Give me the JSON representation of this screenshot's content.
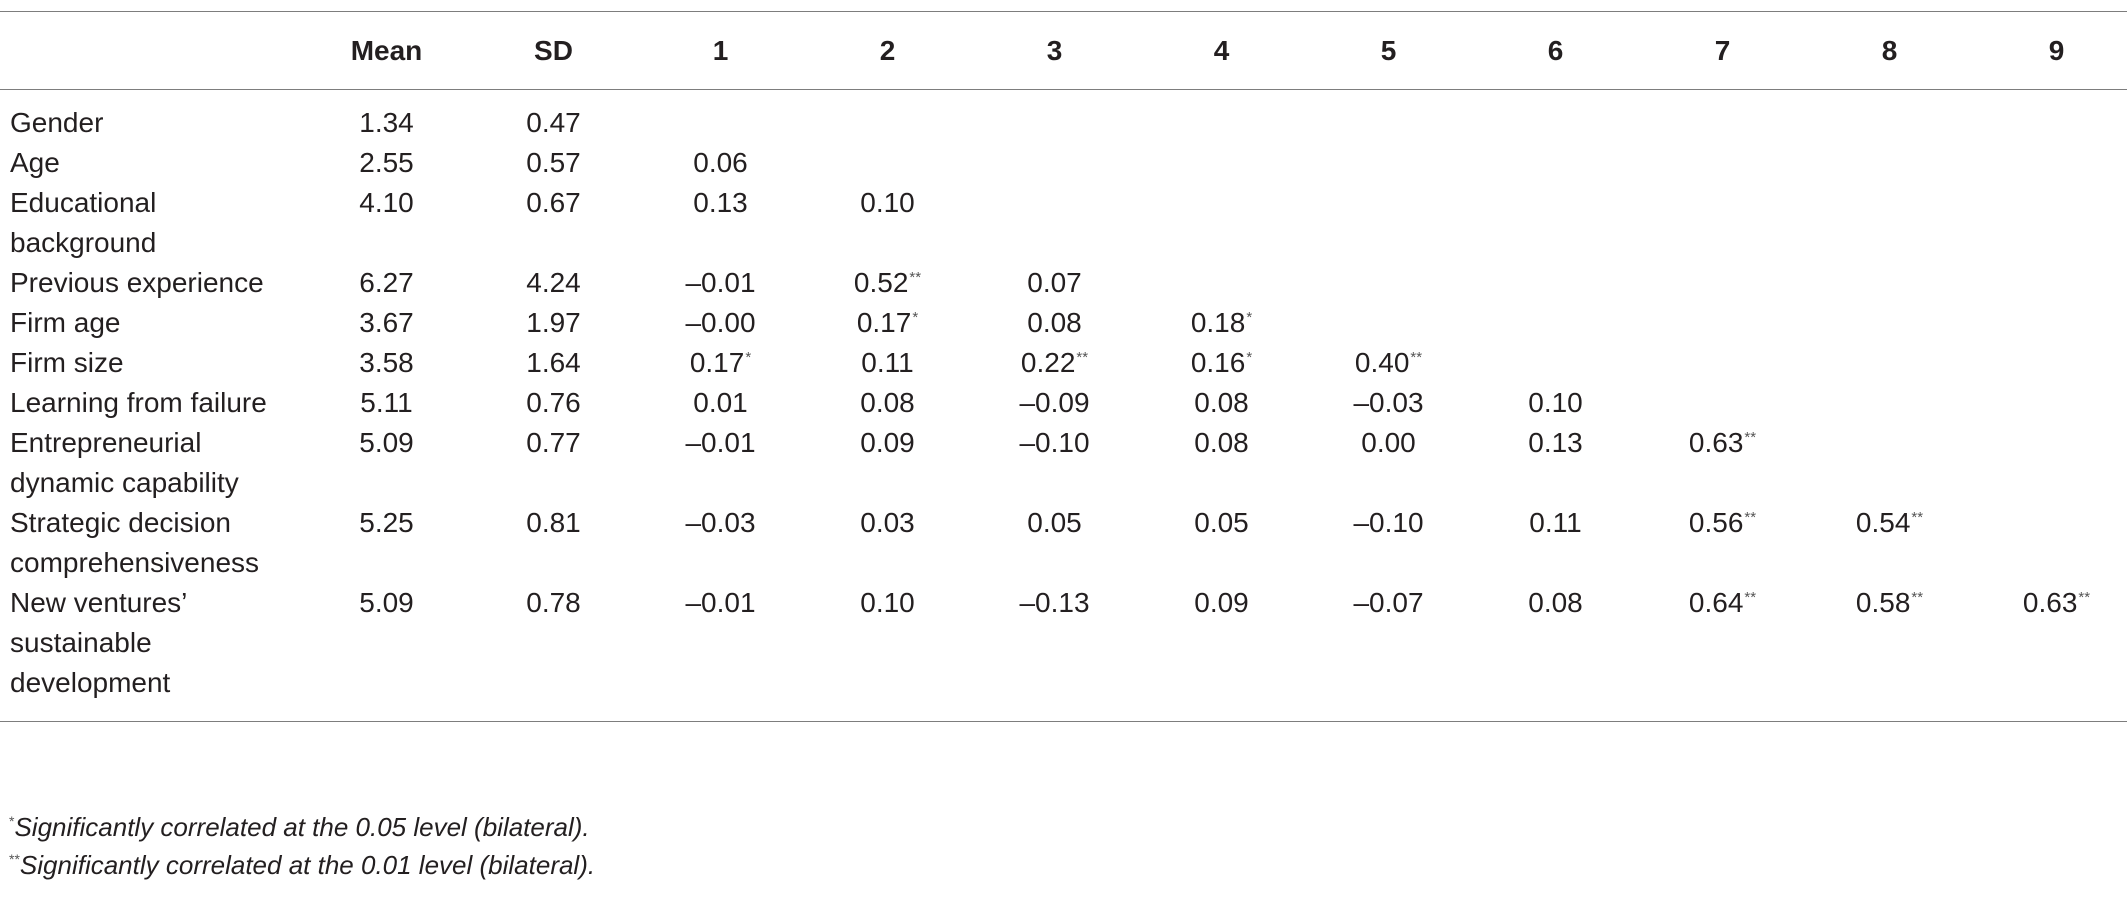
{
  "table": {
    "headers": [
      "",
      "Mean",
      "SD",
      "1",
      "2",
      "3",
      "4",
      "5",
      "6",
      "7",
      "8",
      "9"
    ],
    "rows": [
      {
        "label": "Gender",
        "cells": [
          [
            "1.34",
            ""
          ],
          [
            "0.47",
            ""
          ],
          [
            "",
            ""
          ],
          [
            "",
            ""
          ],
          [
            "",
            ""
          ],
          [
            "",
            ""
          ],
          [
            "",
            ""
          ],
          [
            "",
            ""
          ],
          [
            "",
            ""
          ],
          [
            "",
            ""
          ],
          [
            "",
            ""
          ]
        ]
      },
      {
        "label": "Age",
        "cells": [
          [
            "2.55",
            ""
          ],
          [
            "0.57",
            ""
          ],
          [
            "0.06",
            ""
          ],
          [
            "",
            ""
          ],
          [
            "",
            ""
          ],
          [
            "",
            ""
          ],
          [
            "",
            ""
          ],
          [
            "",
            ""
          ],
          [
            "",
            ""
          ],
          [
            "",
            ""
          ],
          [
            "",
            ""
          ]
        ]
      },
      {
        "label": "Educational background",
        "cells": [
          [
            "4.10",
            ""
          ],
          [
            "0.67",
            ""
          ],
          [
            "0.13",
            ""
          ],
          [
            "0.10",
            ""
          ],
          [
            "",
            ""
          ],
          [
            "",
            ""
          ],
          [
            "",
            ""
          ],
          [
            "",
            ""
          ],
          [
            "",
            ""
          ],
          [
            "",
            ""
          ],
          [
            "",
            ""
          ]
        ]
      },
      {
        "label": "Previous experience",
        "cells": [
          [
            "6.27",
            ""
          ],
          [
            "4.24",
            ""
          ],
          [
            "–0.01",
            ""
          ],
          [
            "0.52",
            "**"
          ],
          [
            "0.07",
            ""
          ],
          [
            "",
            ""
          ],
          [
            "",
            ""
          ],
          [
            "",
            ""
          ],
          [
            "",
            ""
          ],
          [
            "",
            ""
          ],
          [
            "",
            ""
          ]
        ]
      },
      {
        "label": "Firm age",
        "cells": [
          [
            "3.67",
            ""
          ],
          [
            "1.97",
            ""
          ],
          [
            "–0.00",
            ""
          ],
          [
            "0.17",
            "*"
          ],
          [
            "0.08",
            ""
          ],
          [
            "0.18",
            "*"
          ],
          [
            "",
            ""
          ],
          [
            "",
            ""
          ],
          [
            "",
            ""
          ],
          [
            "",
            ""
          ],
          [
            "",
            ""
          ]
        ]
      },
      {
        "label": "Firm size",
        "cells": [
          [
            "3.58",
            ""
          ],
          [
            "1.64",
            ""
          ],
          [
            "0.17",
            "*"
          ],
          [
            "0.11",
            ""
          ],
          [
            "0.22",
            "**"
          ],
          [
            "0.16",
            "*"
          ],
          [
            "0.40",
            "**"
          ],
          [
            "",
            ""
          ],
          [
            "",
            ""
          ],
          [
            "",
            ""
          ],
          [
            "",
            ""
          ]
        ]
      },
      {
        "label": "Learning from failure",
        "cells": [
          [
            "5.11",
            ""
          ],
          [
            "0.76",
            ""
          ],
          [
            "0.01",
            ""
          ],
          [
            "0.08",
            ""
          ],
          [
            "–0.09",
            ""
          ],
          [
            "0.08",
            ""
          ],
          [
            "–0.03",
            ""
          ],
          [
            "0.10",
            ""
          ],
          [
            "",
            ""
          ],
          [
            "",
            ""
          ],
          [
            "",
            ""
          ]
        ]
      },
      {
        "label": "Entrepreneurial dynamic capability",
        "cells": [
          [
            "5.09",
            ""
          ],
          [
            "0.77",
            ""
          ],
          [
            "–0.01",
            ""
          ],
          [
            "0.09",
            ""
          ],
          [
            "–0.10",
            ""
          ],
          [
            "0.08",
            ""
          ],
          [
            "0.00",
            ""
          ],
          [
            "0.13",
            ""
          ],
          [
            "0.63",
            "**"
          ],
          [
            "",
            ""
          ],
          [
            "",
            ""
          ]
        ]
      },
      {
        "label": "Strategic decision comprehensiveness",
        "cells": [
          [
            "5.25",
            ""
          ],
          [
            "0.81",
            ""
          ],
          [
            "–0.03",
            ""
          ],
          [
            "0.03",
            ""
          ],
          [
            "0.05",
            ""
          ],
          [
            "0.05",
            ""
          ],
          [
            "–0.10",
            ""
          ],
          [
            "0.11",
            ""
          ],
          [
            "0.56",
            "**"
          ],
          [
            "0.54",
            "**"
          ],
          [
            "",
            ""
          ]
        ]
      },
      {
        "label": "New ventures’ sustainable development",
        "cells": [
          [
            "5.09",
            ""
          ],
          [
            "0.78",
            ""
          ],
          [
            "–0.01",
            ""
          ],
          [
            "0.10",
            ""
          ],
          [
            "–0.13",
            ""
          ],
          [
            "0.09",
            ""
          ],
          [
            "–0.07",
            ""
          ],
          [
            "0.08",
            ""
          ],
          [
            "0.64",
            "**"
          ],
          [
            "0.58",
            "**"
          ],
          [
            "0.63",
            "**"
          ]
        ]
      }
    ]
  },
  "notes": [
    {
      "mark": "*",
      "text": "Significantly correlated at the 0.05 level (bilateral)."
    },
    {
      "mark": "**",
      "text": "Significantly correlated at the 0.01 level (bilateral)."
    }
  ]
}
